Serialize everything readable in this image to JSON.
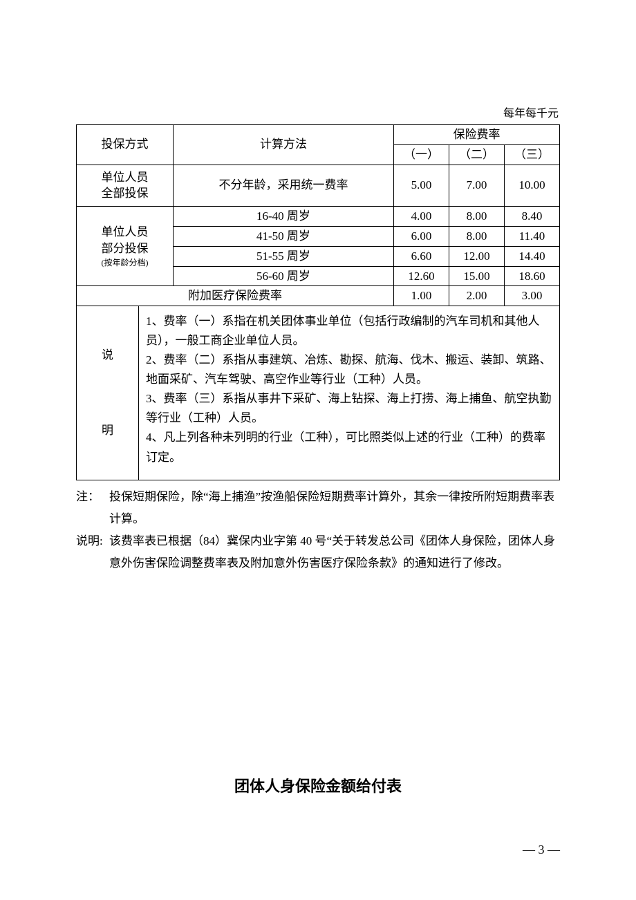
{
  "unit_label": "每年每千元",
  "headers": {
    "method": "投保方式",
    "calc": "计算方法",
    "rate": "保险费率",
    "r1": "（一）",
    "r2": "（二）",
    "r3": "（三）"
  },
  "row_full": {
    "label_l1": "单位人员",
    "label_l2": "全部投保",
    "calc": "不分年龄，采用统一费率",
    "r1": "5.00",
    "r2": "7.00",
    "r3": "10.00"
  },
  "row_partial_label": {
    "l1": "单位人员",
    "l2": "部分投保",
    "l3": "(按年龄分档)"
  },
  "age_rows": [
    {
      "calc": "16-40 周岁",
      "r1": "4.00",
      "r2": "8.00",
      "r3": "8.40"
    },
    {
      "calc": "41-50 周岁",
      "r1": "6.00",
      "r2": "8.00",
      "r3": "11.40"
    },
    {
      "calc": "51-55 周岁",
      "r1": "6.60",
      "r2": "12.00",
      "r3": "14.40"
    },
    {
      "calc": "56-60 周岁",
      "r1": "12.60",
      "r2": "15.00",
      "r3": "18.60"
    }
  ],
  "medical_row": {
    "label": "附加医疗保险费率",
    "r1": "1.00",
    "r2": "2.00",
    "r3": "3.00"
  },
  "explain": {
    "label_top": "说",
    "label_bottom": "明",
    "p1": "1、费率（一）系指在机关团体事业单位（包括行政编制的汽车司机和其他人员），一般工商企业单位人员。",
    "p2": "2、费率（二）系指从事建筑、冶炼、勘探、航海、伐木、搬运、装卸、筑路、地面采矿、汽车驾驶、高空作业等行业（工种）人员。",
    "p3": "3、费率（三）系指从事井下采矿、海上钻探、海上打捞、海上捕鱼、航空执勤等行业（工种）人员。",
    "p4": "4、凡上列各种未列明的行业（工种），可比照类似上述的行业（工种）的费率订定。"
  },
  "note1": {
    "label": "注：",
    "text": "投保短期保险，除“海上捕渔”按渔船保险短期费率计算外，其余一律按所附短期费率表计算。"
  },
  "note2": {
    "label": "说明:",
    "text": "该费率表已根据（84）冀保内业字第 40 号“关于转发总公司《团体人身保险，团体人身意外伤害保险调整费率表及附加意外伤害医疗保险条款》的通知进行了修改。"
  },
  "section_title": "团体人身保险金额给付表",
  "page_number": "— 3 —"
}
